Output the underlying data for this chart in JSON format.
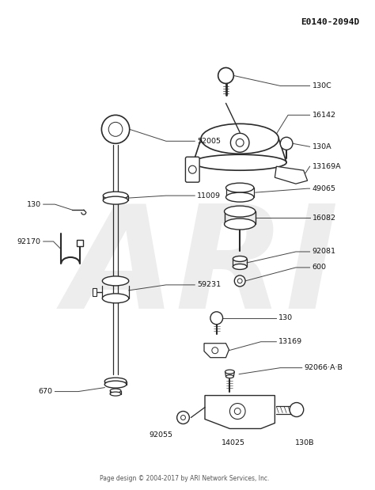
{
  "bg_color": "#ffffff",
  "diagram_id": "E0140-2094D",
  "footer": "Page design © 2004-2017 by ARI Network Services, Inc.",
  "watermark": "ARI",
  "gc": "#2a2a2a",
  "lc": "#444444",
  "figsize": [
    4.74,
    6.19
  ],
  "dpi": 100
}
